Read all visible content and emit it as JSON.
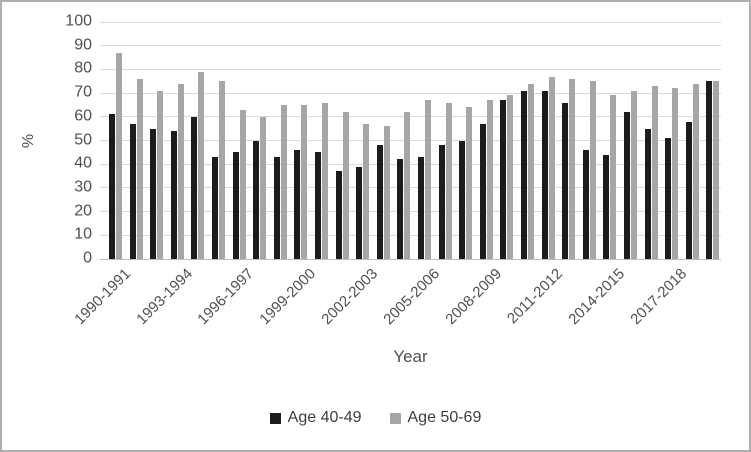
{
  "figure": {
    "background": "#ffffff",
    "border_color": "#aeaeae"
  },
  "chart_data": {
    "type": "bar",
    "title": "",
    "xlabel": "Year",
    "ylabel": "%",
    "ylim": [
      0,
      100
    ],
    "yticks": [
      0,
      10,
      20,
      30,
      40,
      50,
      60,
      70,
      80,
      90,
      100
    ],
    "grid": "horizontal",
    "legend_position": "bottom",
    "tick_label_interval": 3,
    "visible_tick_labels": [
      "1990-1991",
      "1993-1994",
      "1996-1997",
      "1999-2000",
      "2002-2003",
      "2005-2006",
      "2008-2009",
      "2011-2012",
      "2014-2015",
      "2017-2018"
    ],
    "categories": [
      "1990-1991",
      "1991-1992",
      "1992-1993",
      "1993-1994",
      "1994-1995",
      "1995-1996",
      "1996-1997",
      "1997-1998",
      "1998-1999",
      "1999-2000",
      "2000-2001",
      "2001-2002",
      "2002-2003",
      "2003-2004",
      "2004-2005",
      "2005-2006",
      "2006-2007",
      "2007-2008",
      "2008-2009",
      "2009-2010",
      "2010-2011",
      "2011-2012",
      "2012-2013",
      "2013-2014",
      "2014-2015",
      "2015-2016",
      "2016-2017",
      "2017-2018",
      "2018-2019",
      "2019-2020"
    ],
    "series": [
      {
        "name": "Age 40-49",
        "color": "#1c1c1c",
        "values": [
          61,
          57,
          55,
          54,
          60,
          43,
          45,
          50,
          43,
          46,
          45,
          37,
          39,
          48,
          42,
          43,
          48,
          50,
          57,
          67,
          71,
          71,
          66,
          46,
          44,
          62,
          55,
          51,
          58,
          75
        ]
      },
      {
        "name": "Age 50-69",
        "color": "#a6a6a6",
        "values": [
          87,
          76,
          71,
          74,
          79,
          75,
          63,
          60,
          65,
          65,
          66,
          62,
          57,
          56,
          62,
          67,
          66,
          64,
          67,
          69,
          74,
          77,
          76,
          75,
          69,
          71,
          73,
          72,
          74,
          75
        ]
      }
    ],
    "colors": {
      "gridline": "#d9d9d9",
      "axis_line": "#bfbfbf",
      "tick_text": "#4f4f4f"
    }
  }
}
